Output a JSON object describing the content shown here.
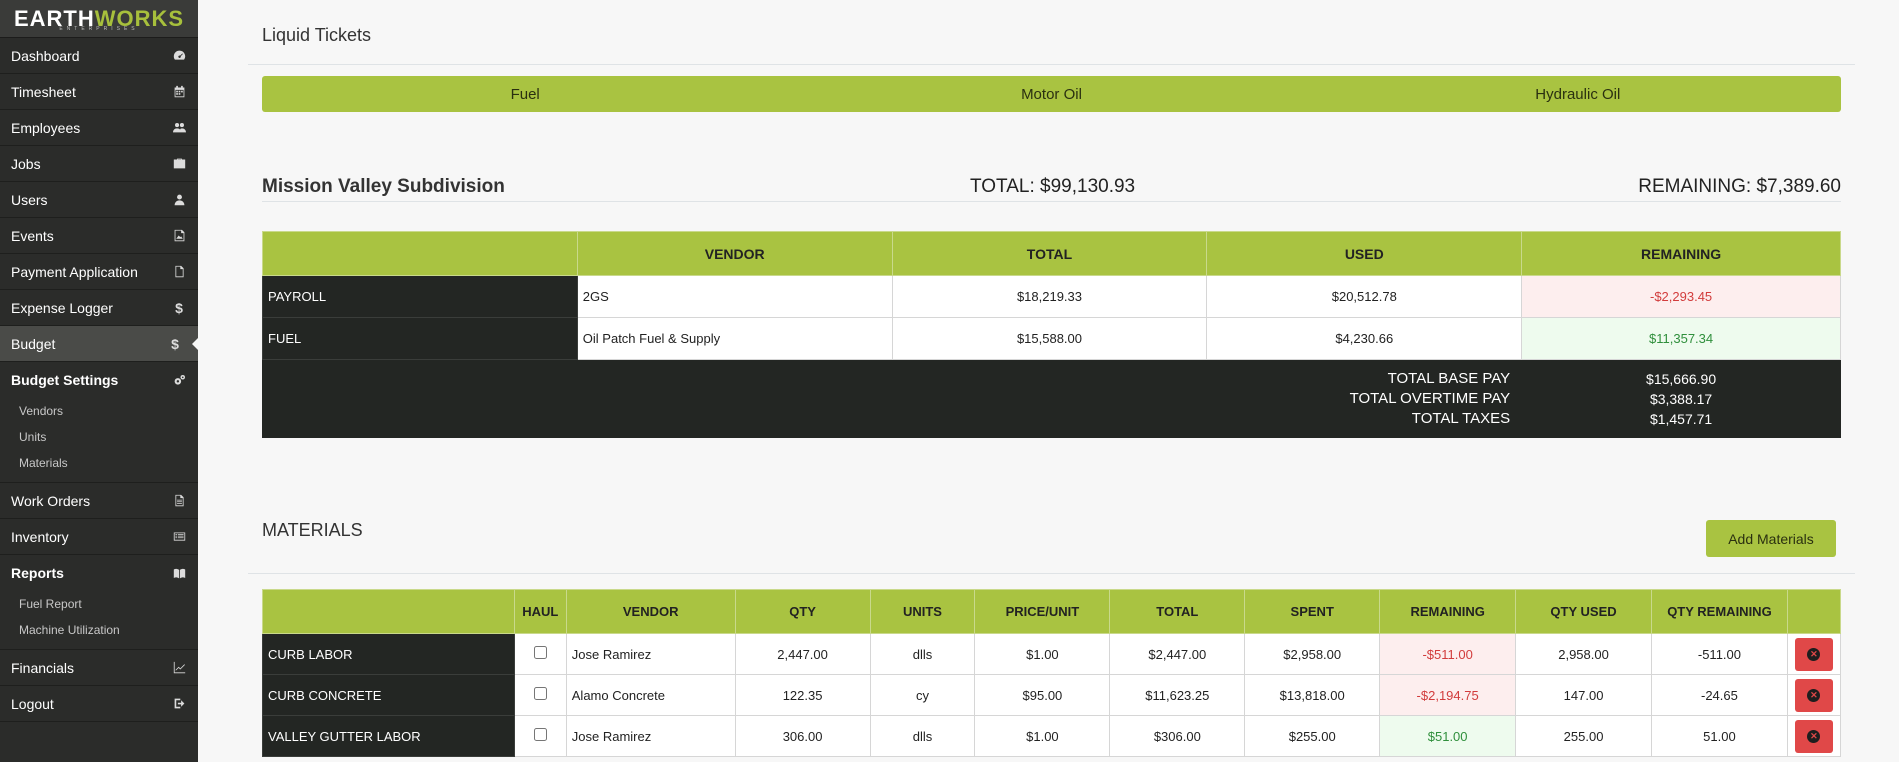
{
  "brand": {
    "logo_left": "EARTH",
    "logo_right": "WORKS",
    "logo_sub": "ENTERPRISES"
  },
  "sidebar": {
    "items": [
      {
        "label": "Dashboard",
        "icon": "dashboard-icon"
      },
      {
        "label": "Timesheet",
        "icon": "calendar-icon"
      },
      {
        "label": "Employees",
        "icon": "users-icon"
      },
      {
        "label": "Jobs",
        "icon": "briefcase-icon"
      },
      {
        "label": "Users",
        "icon": "user-icon"
      },
      {
        "label": "Events",
        "icon": "image-icon"
      },
      {
        "label": "Payment Application",
        "icon": "file-icon"
      },
      {
        "label": "Expense Logger",
        "icon": "dollar-icon"
      },
      {
        "label": "Budget",
        "icon": "dollar-icon"
      },
      {
        "label": "Budget Settings",
        "icon": "cogs-icon"
      },
      {
        "label": "Work Orders",
        "icon": "file-text-icon"
      },
      {
        "label": "Inventory",
        "icon": "list-icon"
      },
      {
        "label": "Reports",
        "icon": "book-icon"
      },
      {
        "label": "Financials",
        "icon": "line-chart-icon"
      },
      {
        "label": "Logout",
        "icon": "sign-out-icon"
      }
    ],
    "budget_settings_sub": [
      "Vendors",
      "Units",
      "Materials"
    ],
    "reports_sub": [
      "Fuel Report",
      "Machine Utilization"
    ]
  },
  "liquid": {
    "title": "Liquid Tickets",
    "tabs": [
      "Fuel",
      "Motor Oil",
      "Hydraulic Oil"
    ]
  },
  "job": {
    "name": "Mission Valley Subdivision",
    "total": "TOTAL: $99,130.93",
    "remaining": "REMAINING: $7,389.60"
  },
  "budget_table": {
    "headers": [
      "",
      "VENDOR",
      "TOTAL",
      "USED",
      "REMAINING"
    ],
    "rows": [
      {
        "label": "PAYROLL",
        "vendor": "2GS",
        "total": "$18,219.33",
        "used": "$20,512.78",
        "remaining": "-$2,293.45",
        "status": "neg"
      },
      {
        "label": "FUEL",
        "vendor": "Oil Patch Fuel & Supply",
        "total": "$15,588.00",
        "used": "$4,230.66",
        "remaining": "$11,357.34",
        "status": "pos"
      }
    ],
    "totals": {
      "base_label": "TOTAL BASE PAY",
      "base_value": "$15,666.90",
      "overtime_label": "TOTAL OVERTIME PAY",
      "overtime_value": "$3,388.17",
      "taxes_label": "TOTAL TAXES",
      "taxes_value": "$1,457.71"
    }
  },
  "materials": {
    "title": "MATERIALS",
    "add_button": "Add Materials",
    "headers": [
      "",
      "HAUL",
      "VENDOR",
      "QTY",
      "UNITS",
      "PRICE/UNIT",
      "TOTAL",
      "SPENT",
      "REMAINING",
      "QTY USED",
      "QTY REMAINING",
      ""
    ],
    "rows": [
      {
        "label": "CURB LABOR",
        "vendor": "Jose Ramirez",
        "qty": "2,447.00",
        "units": "dlls",
        "price": "$1.00",
        "total": "$2,447.00",
        "spent": "$2,958.00",
        "remaining": "-$511.00",
        "status": "neg",
        "qty_used": "2,958.00",
        "qty_remaining": "-511.00"
      },
      {
        "label": "CURB CONCRETE",
        "vendor": "Alamo Concrete",
        "qty": "122.35",
        "units": "cy",
        "price": "$95.00",
        "total": "$11,623.25",
        "spent": "$13,818.00",
        "remaining": "-$2,194.75",
        "status": "neg",
        "qty_used": "147.00",
        "qty_remaining": "-24.65"
      },
      {
        "label": "VALLEY GUTTER LABOR",
        "vendor": "Jose Ramirez",
        "qty": "306.00",
        "units": "dlls",
        "price": "$1.00",
        "total": "$306.00",
        "spent": "$255.00",
        "remaining": "$51.00",
        "status": "pos",
        "qty_used": "255.00",
        "qty_remaining": "51.00"
      }
    ]
  },
  "colors": {
    "accent": "#a9c341",
    "sidebar": "#2b2c2a",
    "dark_cell": "#232623",
    "danger": "#e04848"
  }
}
